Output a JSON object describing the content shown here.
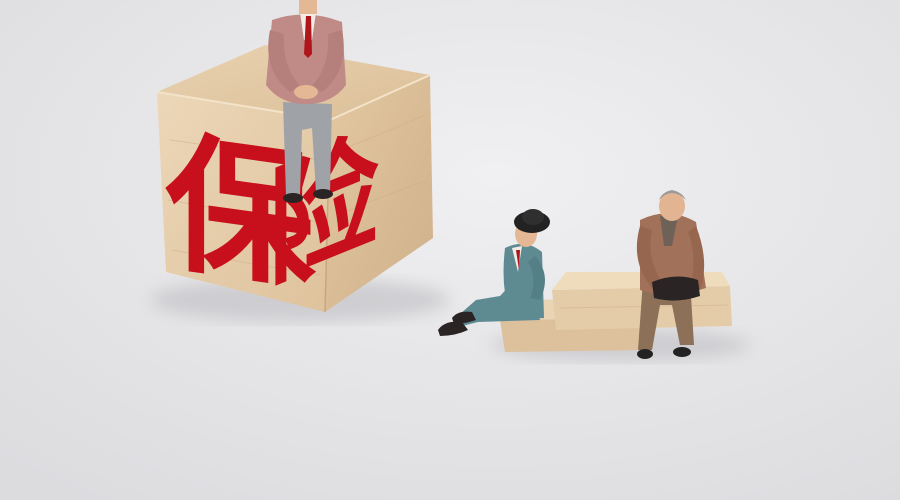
{
  "cube": {
    "front_char": "保",
    "side_char": "险"
  },
  "colors": {
    "background": "#e6e6e8",
    "wood_top": "#e2c9a4",
    "wood_front": "#e9d3b3",
    "wood_side": "#dcc09a",
    "character_red": "#c8101d",
    "suit_pink": "#c08a86",
    "suit_teal": "#5e8a92",
    "suit_brown": "#a27159"
  },
  "figures": [
    {
      "name": "man-on-cube",
      "pose": "sitting",
      "suit": "pink"
    },
    {
      "name": "man-with-hat",
      "pose": "sitting-legs-extended",
      "suit": "teal"
    },
    {
      "name": "old-man-on-bench",
      "pose": "sitting",
      "suit": "brown"
    }
  ]
}
